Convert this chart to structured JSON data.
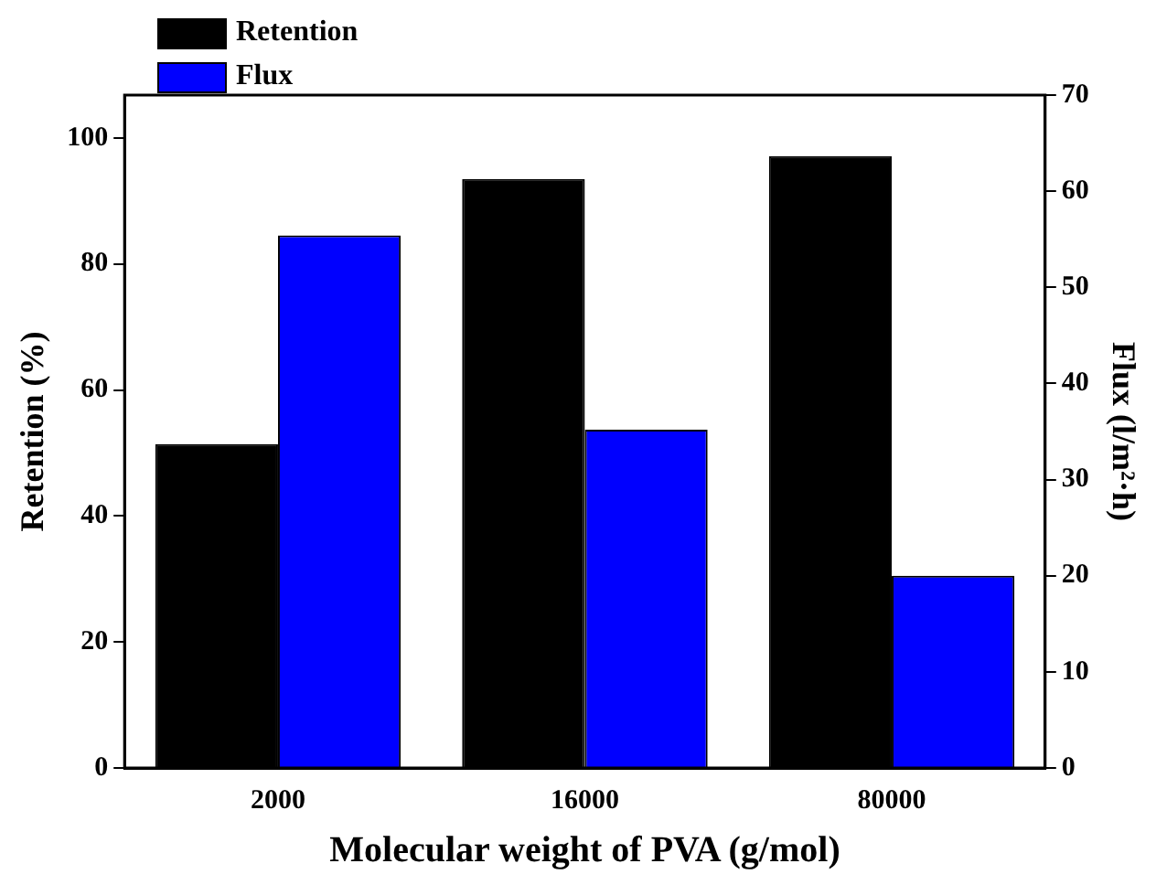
{
  "chart_data": {
    "type": "bar",
    "xlabel": "Molecular weight of PVA (g/mol)",
    "ylabel": "Retention (%)",
    "y2label": "Flux (l/m²·h)",
    "categories": [
      "2000",
      "16000",
      "80000"
    ],
    "series": [
      {
        "name": "Retention",
        "color": "#000000",
        "values": [
          51.4,
          93.5,
          97.1
        ]
      },
      {
        "name": "Flux",
        "color": "#0000ff",
        "values": [
          55.4,
          35.2,
          20.0
        ],
        "axis": "y2"
      }
    ],
    "ylim": [
      0,
      106.8
    ],
    "yticks": [
      0,
      20,
      40,
      60,
      80,
      100
    ],
    "y2lim": [
      0,
      70
    ],
    "y2ticks": [
      0,
      10,
      20,
      30,
      40,
      50,
      60,
      70
    ],
    "grid": false,
    "legend": "top left"
  }
}
